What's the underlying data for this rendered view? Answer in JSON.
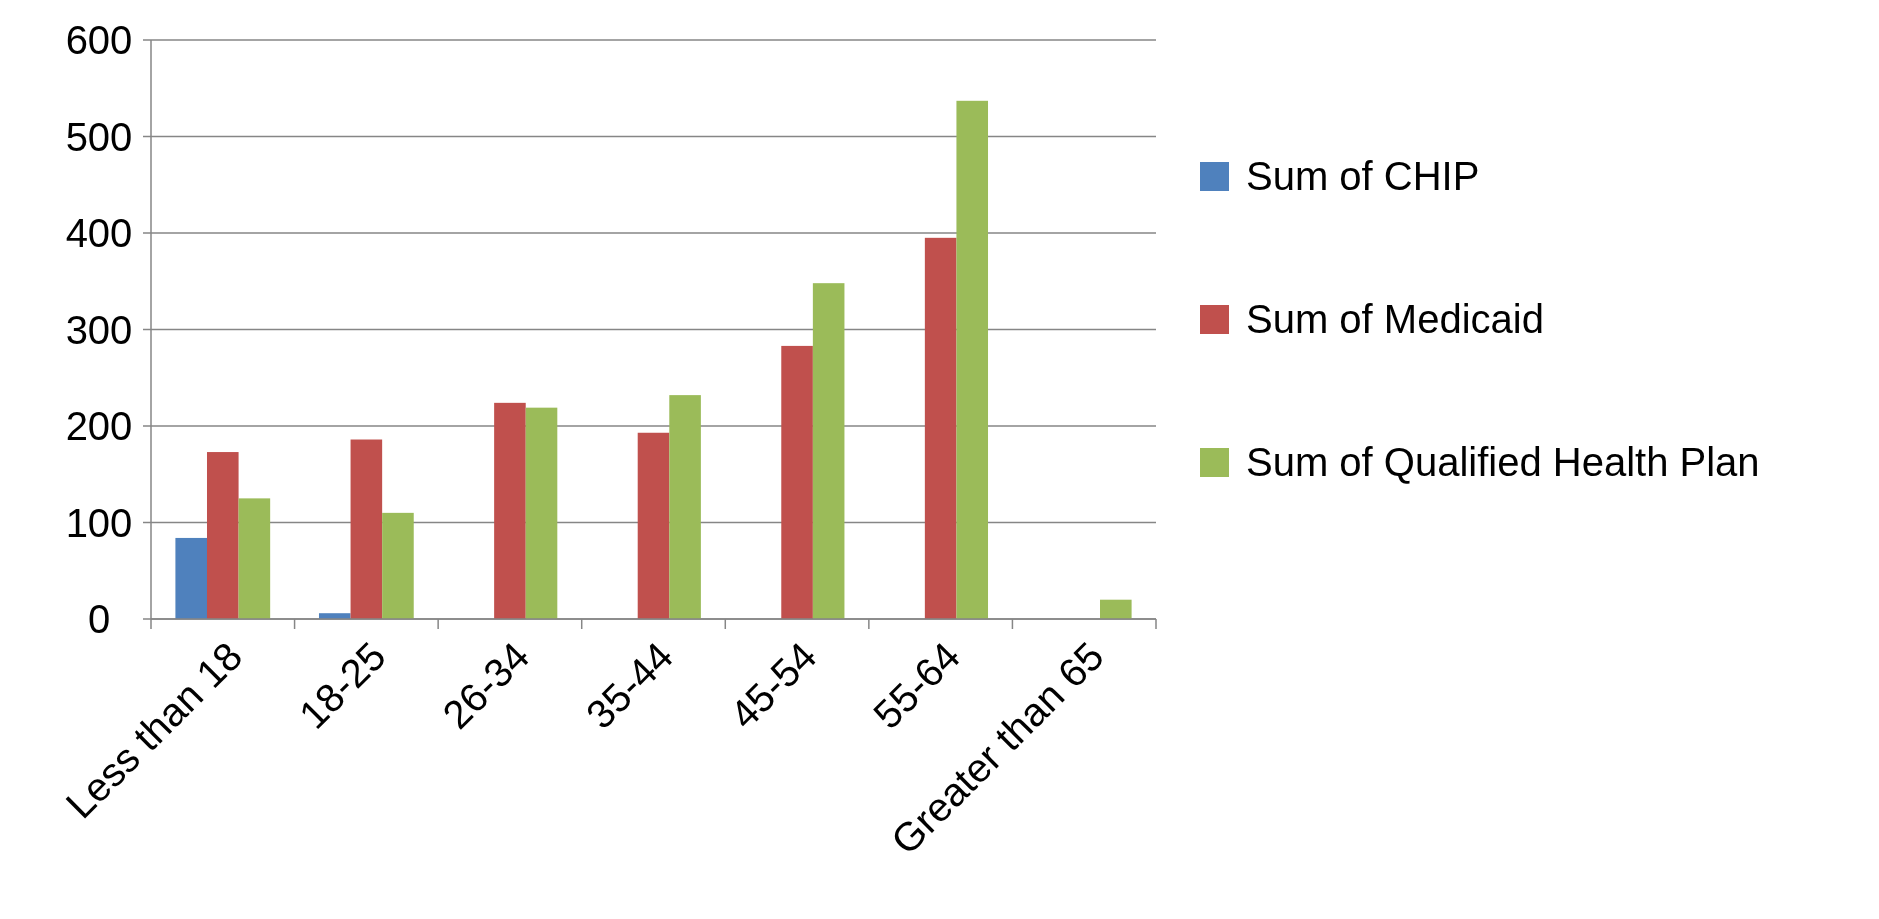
{
  "chart_data": {
    "type": "bar",
    "categories": [
      "Less than 18",
      "18-25",
      "26-34",
      "35-44",
      "45-54",
      "55-64",
      "Greater than 65"
    ],
    "series": [
      {
        "name": "Sum of CHIP",
        "color": "#4f81bd",
        "values": [
          84,
          6,
          0,
          0,
          0,
          0,
          0
        ]
      },
      {
        "name": "Sum of Medicaid",
        "color": "#c0504d",
        "values": [
          173,
          186,
          224,
          193,
          283,
          395,
          0
        ]
      },
      {
        "name": "Sum of Qualified Health Plan",
        "color": "#9bbb59",
        "values": [
          125,
          110,
          219,
          232,
          348,
          537,
          20
        ]
      }
    ],
    "ylim": [
      0,
      600
    ],
    "yticks": [
      0,
      100,
      200,
      300,
      400,
      500,
      600
    ],
    "grid": "y",
    "legend": "right"
  }
}
